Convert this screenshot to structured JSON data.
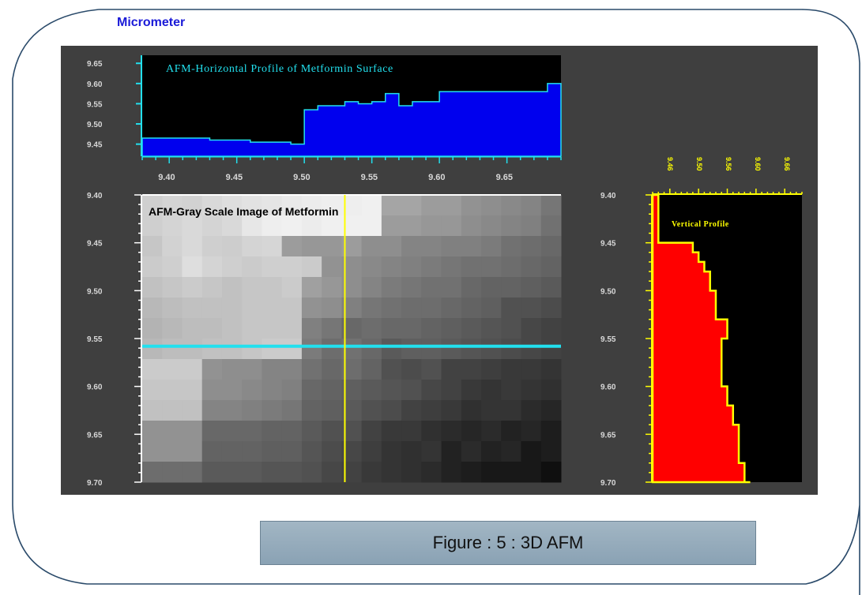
{
  "unit_label": "Micrometer",
  "caption": "Figure : 5 : 3D AFM",
  "colors": {
    "panel": "#3f3f3f",
    "axis_text": "#d8d8d8",
    "horizontal_fill": "#0000ee",
    "horizontal_line": "#22e0ee",
    "vertical_fill": "#ff0000",
    "vertical_line": "#ffff00",
    "cursor_h": "#22e0ee",
    "cursor_v": "#ffff00"
  },
  "chart_data": [
    {
      "type": "area",
      "title": "AFM-Horizontal Profile of Metformin Surface",
      "x_ticks": [
        "9.40",
        "9.45",
        "9.50",
        "9.55",
        "9.60",
        "9.65"
      ],
      "y_ticks": [
        "9.65",
        "9.60",
        "9.55",
        "9.50",
        "9.45"
      ],
      "xlim": [
        9.38,
        9.69
      ],
      "ylim": [
        9.42,
        9.67
      ],
      "x": [
        9.38,
        9.4,
        9.43,
        9.46,
        9.49,
        9.5,
        9.51,
        9.52,
        9.53,
        9.54,
        9.55,
        9.56,
        9.57,
        9.58,
        9.59,
        9.6,
        9.61,
        9.63,
        9.68,
        9.69
      ],
      "y": [
        9.465,
        9.465,
        9.46,
        9.455,
        9.45,
        9.535,
        9.545,
        9.545,
        9.555,
        9.55,
        9.555,
        9.575,
        9.545,
        9.555,
        9.555,
        9.58,
        9.58,
        9.58,
        9.6,
        9.6
      ],
      "grid": false
    },
    {
      "type": "heatmap",
      "title": "AFM-Gray Scale Image of Metformin",
      "y_ticks": [
        "9.40",
        "9.45",
        "9.50",
        "9.55",
        "9.60",
        "9.65",
        "9.70"
      ],
      "ylim": [
        9.4,
        9.7
      ],
      "cursor_y": 9.558,
      "cursor_x": 9.53,
      "rows": 14,
      "cols": 21,
      "values": [
        [
          0.84,
          0.86,
          0.85,
          0.88,
          0.9,
          0.92,
          0.93,
          0.95,
          0.96,
          0.97,
          0.97,
          0.98,
          0.66,
          0.66,
          0.62,
          0.62,
          0.58,
          0.56,
          0.54,
          0.52,
          0.46
        ],
        [
          0.84,
          0.86,
          0.88,
          0.86,
          0.88,
          0.94,
          0.97,
          0.98,
          0.96,
          0.98,
          0.98,
          0.98,
          0.62,
          0.62,
          0.6,
          0.6,
          0.56,
          0.54,
          0.52,
          0.5,
          0.44
        ],
        [
          0.8,
          0.85,
          0.88,
          0.84,
          0.83,
          0.86,
          0.87,
          0.62,
          0.6,
          0.6,
          0.62,
          0.56,
          0.56,
          0.52,
          0.52,
          0.5,
          0.5,
          0.48,
          0.44,
          0.42,
          0.4
        ],
        [
          0.82,
          0.84,
          0.9,
          0.86,
          0.84,
          0.82,
          0.84,
          0.84,
          0.82,
          0.58,
          0.56,
          0.54,
          0.52,
          0.5,
          0.48,
          0.46,
          0.44,
          0.44,
          0.42,
          0.4,
          0.38
        ],
        [
          0.78,
          0.8,
          0.82,
          0.8,
          0.78,
          0.8,
          0.8,
          0.82,
          0.64,
          0.6,
          0.56,
          0.52,
          0.48,
          0.46,
          0.44,
          0.44,
          0.4,
          0.38,
          0.38,
          0.36,
          0.34
        ],
        [
          0.74,
          0.76,
          0.78,
          0.78,
          0.78,
          0.8,
          0.8,
          0.8,
          0.58,
          0.56,
          0.5,
          0.46,
          0.44,
          0.42,
          0.42,
          0.4,
          0.38,
          0.36,
          0.3,
          0.3,
          0.28
        ],
        [
          0.72,
          0.74,
          0.76,
          0.76,
          0.78,
          0.8,
          0.8,
          0.8,
          0.5,
          0.46,
          0.4,
          0.42,
          0.4,
          0.4,
          0.38,
          0.36,
          0.34,
          0.32,
          0.3,
          0.26,
          0.24
        ],
        [
          0.74,
          0.76,
          0.76,
          0.78,
          0.78,
          0.8,
          0.82,
          0.82,
          0.48,
          0.42,
          0.44,
          0.4,
          0.34,
          0.36,
          0.36,
          0.34,
          0.32,
          0.3,
          0.28,
          0.26,
          0.24
        ],
        [
          0.82,
          0.82,
          0.82,
          0.58,
          0.56,
          0.56,
          0.52,
          0.52,
          0.44,
          0.4,
          0.42,
          0.38,
          0.3,
          0.28,
          0.3,
          0.24,
          0.24,
          0.22,
          0.2,
          0.2,
          0.18
        ],
        [
          0.8,
          0.8,
          0.8,
          0.56,
          0.56,
          0.54,
          0.52,
          0.5,
          0.4,
          0.38,
          0.36,
          0.34,
          0.32,
          0.3,
          0.26,
          0.24,
          0.2,
          0.18,
          0.2,
          0.18,
          0.16
        ],
        [
          0.78,
          0.78,
          0.78,
          0.52,
          0.52,
          0.5,
          0.48,
          0.46,
          0.38,
          0.36,
          0.34,
          0.3,
          0.28,
          0.24,
          0.22,
          0.2,
          0.16,
          0.18,
          0.18,
          0.14,
          0.12
        ],
        [
          0.58,
          0.58,
          0.58,
          0.4,
          0.4,
          0.4,
          0.38,
          0.38,
          0.34,
          0.3,
          0.3,
          0.24,
          0.2,
          0.2,
          0.16,
          0.14,
          0.12,
          0.14,
          0.1,
          0.12,
          0.08
        ],
        [
          0.58,
          0.58,
          0.58,
          0.38,
          0.38,
          0.38,
          0.36,
          0.36,
          0.32,
          0.28,
          0.26,
          0.22,
          0.18,
          0.16,
          0.18,
          0.1,
          0.14,
          0.1,
          0.12,
          0.06,
          0.08
        ],
        [
          0.42,
          0.42,
          0.42,
          0.34,
          0.34,
          0.34,
          0.32,
          0.32,
          0.3,
          0.26,
          0.24,
          0.2,
          0.18,
          0.16,
          0.14,
          0.1,
          0.08,
          0.06,
          0.06,
          0.06,
          0.02
        ]
      ]
    },
    {
      "type": "area",
      "title": "Vertical Profile",
      "y_ticks": [
        "9.40",
        "9.45",
        "9.50",
        "9.55",
        "9.60",
        "9.65",
        "9.70"
      ],
      "x_ticks": [
        "9.46",
        "9.50",
        "9.56",
        "9.60",
        "9.66"
      ],
      "ylim": [
        9.4,
        9.7
      ],
      "xlim": [
        9.42,
        9.68
      ],
      "y": [
        9.4,
        9.42,
        9.44,
        9.45,
        9.46,
        9.47,
        9.48,
        9.49,
        9.5,
        9.51,
        9.53,
        9.55,
        9.58,
        9.6,
        9.62,
        9.64,
        9.66,
        9.68,
        9.7
      ],
      "x": [
        9.43,
        9.43,
        9.43,
        9.49,
        9.5,
        9.51,
        9.52,
        9.52,
        9.53,
        9.53,
        9.55,
        9.54,
        9.54,
        9.55,
        9.56,
        9.57,
        9.57,
        9.58,
        9.59
      ]
    }
  ]
}
